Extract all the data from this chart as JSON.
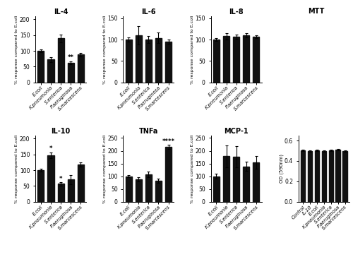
{
  "il4": {
    "title": "IL-4",
    "values": [
      100,
      73,
      140,
      62,
      88
    ],
    "errors": [
      5,
      8,
      12,
      5,
      5
    ],
    "ylim": [
      0,
      210
    ],
    "yticks": [
      0,
      50,
      100,
      150,
      200
    ],
    "annotations": [
      {
        "idx": 3,
        "text": "**",
        "y": 68
      }
    ]
  },
  "il6": {
    "title": "IL-6",
    "values": [
      100,
      110,
      100,
      104,
      95
    ],
    "errors": [
      5,
      22,
      8,
      12,
      5
    ],
    "ylim": [
      0,
      155
    ],
    "yticks": [
      0,
      50,
      100,
      150
    ],
    "annotations": []
  },
  "il8": {
    "title": "IL-8",
    "values": [
      100,
      108,
      107,
      110,
      107
    ],
    "errors": [
      3,
      7,
      5,
      5,
      4
    ],
    "ylim": [
      0,
      155
    ],
    "yticks": [
      0,
      50,
      100,
      150
    ],
    "annotations": []
  },
  "il10": {
    "title": "IL-10",
    "values": [
      100,
      147,
      57,
      70,
      118
    ],
    "errors": [
      5,
      10,
      5,
      15,
      7
    ],
    "ylim": [
      0,
      210
    ],
    "yticks": [
      0,
      50,
      100,
      150,
      200
    ],
    "annotations": [
      {
        "idx": 1,
        "text": "*",
        "y": 158
      },
      {
        "idx": 2,
        "text": "*",
        "y": 63
      }
    ]
  },
  "tnfa": {
    "title": "TNFa",
    "values": [
      100,
      88,
      107,
      82,
      215
    ],
    "errors": [
      5,
      8,
      10,
      8,
      8
    ],
    "ylim": [
      0,
      260
    ],
    "yticks": [
      0,
      50,
      100,
      150,
      200,
      250
    ],
    "annotations": [
      {
        "idx": 4,
        "text": "****",
        "y": 224
      }
    ]
  },
  "mcp1": {
    "title": "MCP-1",
    "values": [
      100,
      178,
      176,
      138,
      155
    ],
    "errors": [
      10,
      42,
      42,
      18,
      25
    ],
    "ylim": [
      0,
      260
    ],
    "yticks": [
      0,
      50,
      100,
      150,
      200,
      250
    ],
    "annotations": []
  },
  "mtt": {
    "title": "MTT",
    "categories": [
      "Control",
      "IL-10",
      "E.coli",
      "K.pneumonia",
      "S.enterica",
      "P.aeruginosa",
      "S.marcescens"
    ],
    "values": [
      0.505,
      0.495,
      0.505,
      0.5,
      0.505,
      0.51,
      0.498
    ],
    "errors": [
      0.008,
      0.008,
      0.008,
      0.007,
      0.008,
      0.008,
      0.008
    ],
    "ylim": [
      0.0,
      0.65
    ],
    "yticks": [
      0.0,
      0.2,
      0.4,
      0.6
    ],
    "ylabel": "OD (590nm)"
  },
  "bar_color": "#111111",
  "categories": [
    "E.coli",
    "K.pneumonia",
    "S.enterica",
    "P.aeruginosa",
    "S.marcescens"
  ],
  "ylabel": "% response compared to E.coli"
}
